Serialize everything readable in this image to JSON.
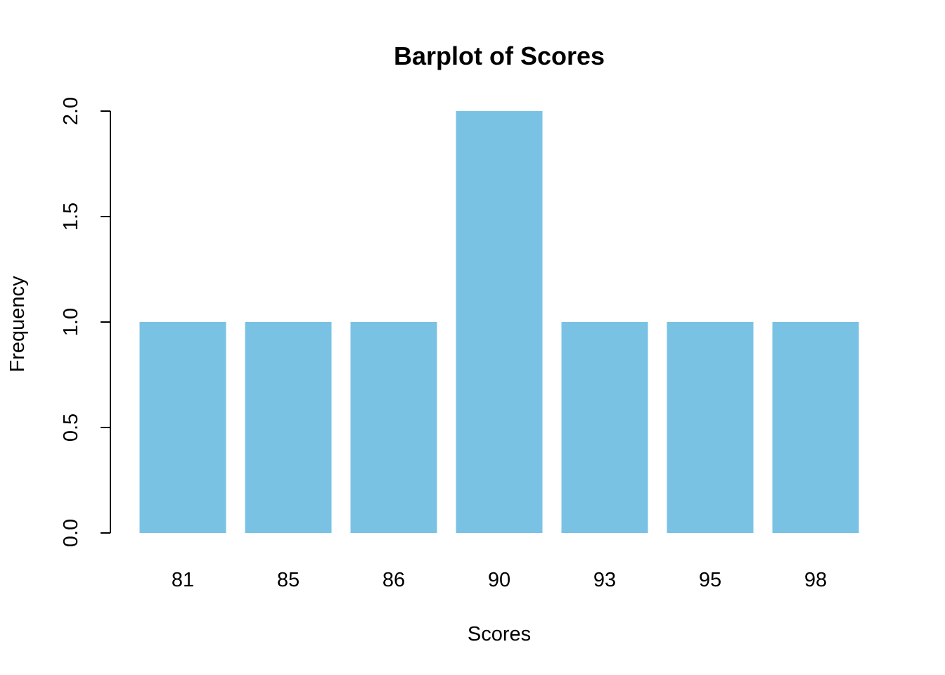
{
  "chart_data": {
    "type": "bar",
    "title": "Barplot of Scores",
    "xlabel": "Scores",
    "ylabel": "Frequency",
    "categories": [
      "81",
      "85",
      "86",
      "90",
      "93",
      "95",
      "98"
    ],
    "values": [
      1,
      1,
      1,
      2,
      1,
      1,
      1
    ],
    "ylim": [
      0,
      2
    ],
    "yticks": [
      "0.0",
      "0.5",
      "1.0",
      "1.5",
      "2.0"
    ],
    "ytick_values": [
      0,
      0.5,
      1,
      1.5,
      2
    ],
    "grid": false,
    "bar_color": "#7AC2E4"
  }
}
